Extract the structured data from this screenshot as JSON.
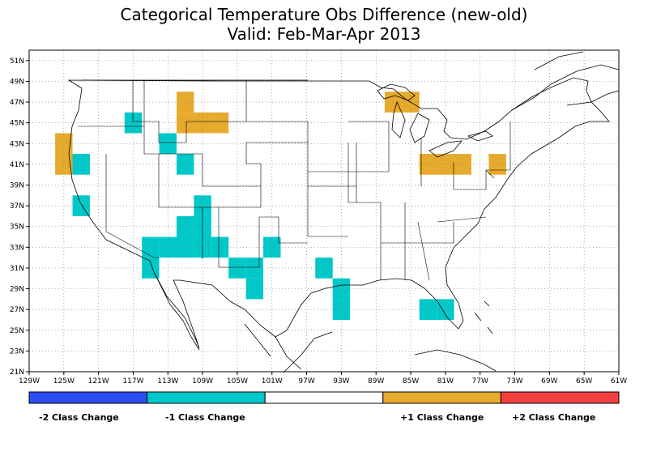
{
  "title": "Categorical Temperature Obs Difference (new-old)",
  "subtitle": "Valid: Feb-Mar-Apr 2013",
  "map": {
    "lon_range": [
      -129,
      -61
    ],
    "lat_range": [
      21,
      52
    ],
    "lon_ticks": [
      "129W",
      "125W",
      "121W",
      "117W",
      "113W",
      "109W",
      "105W",
      "101W",
      "97W",
      "93W",
      "89W",
      "85W",
      "81W",
      "77W",
      "73W",
      "69W",
      "65W",
      "61W"
    ],
    "lat_ticks": [
      "21N",
      "23N",
      "25N",
      "27N",
      "29N",
      "31N",
      "33N",
      "35N",
      "37N",
      "39N",
      "41N",
      "43N",
      "45N",
      "47N",
      "49N",
      "51N"
    ],
    "colors": {
      "minus1": "#00c8c8",
      "plus1": "#e6aa2d",
      "minus2": "#2b4ef2",
      "plus2": "#f24040"
    },
    "cells": [
      {
        "lon": -125,
        "lat": 41,
        "cls": 1
      },
      {
        "lon": -125,
        "lat": 43,
        "cls": 1
      },
      {
        "lon": -123,
        "lat": 41,
        "cls": -1
      },
      {
        "lon": -123,
        "lat": 37,
        "cls": -1
      },
      {
        "lon": -117,
        "lat": 45,
        "cls": -1
      },
      {
        "lon": -113,
        "lat": 43,
        "cls": -1
      },
      {
        "lon": -111,
        "lat": 41,
        "cls": -1
      },
      {
        "lon": -111,
        "lat": 45,
        "cls": 1
      },
      {
        "lon": -111,
        "lat": 47,
        "cls": 1
      },
      {
        "lon": -109,
        "lat": 45,
        "cls": 1
      },
      {
        "lon": -107,
        "lat": 45,
        "cls": 1
      },
      {
        "lon": -109,
        "lat": 37,
        "cls": -1
      },
      {
        "lon": -111,
        "lat": 35,
        "cls": -1
      },
      {
        "lon": -109,
        "lat": 35,
        "cls": -1
      },
      {
        "lon": -115,
        "lat": 33,
        "cls": -1
      },
      {
        "lon": -113,
        "lat": 33,
        "cls": -1
      },
      {
        "lon": -111,
        "lat": 33,
        "cls": -1
      },
      {
        "lon": -109,
        "lat": 33,
        "cls": -1
      },
      {
        "lon": -107,
        "lat": 33,
        "cls": -1
      },
      {
        "lon": -115,
        "lat": 31,
        "cls": -1
      },
      {
        "lon": -105,
        "lat": 31,
        "cls": -1
      },
      {
        "lon": -103,
        "lat": 31,
        "cls": -1
      },
      {
        "lon": -103,
        "lat": 29,
        "cls": -1
      },
      {
        "lon": -101,
        "lat": 33,
        "cls": -1
      },
      {
        "lon": -95,
        "lat": 31,
        "cls": -1
      },
      {
        "lon": -93,
        "lat": 29,
        "cls": -1
      },
      {
        "lon": -93,
        "lat": 27,
        "cls": -1
      },
      {
        "lon": -87,
        "lat": 47,
        "cls": 1
      },
      {
        "lon": -85,
        "lat": 47,
        "cls": 1
      },
      {
        "lon": -83,
        "lat": 41,
        "cls": 1
      },
      {
        "lon": -81,
        "lat": 41,
        "cls": 1
      },
      {
        "lon": -79,
        "lat": 41,
        "cls": 1
      },
      {
        "lon": -75,
        "lat": 41,
        "cls": 1
      },
      {
        "lon": -83,
        "lat": 27,
        "cls": -1
      },
      {
        "lon": -81,
        "lat": 27,
        "cls": -1
      }
    ]
  },
  "legend": {
    "items": [
      {
        "label": "-2 Class Change",
        "color": "#2b4ef2"
      },
      {
        "label": "-1 Class Change",
        "color": "#00c8c8"
      },
      {
        "label": "",
        "color": "#ffffff"
      },
      {
        "label": "+1 Class Change",
        "color": "#e6aa2d"
      },
      {
        "label": "+2 Class Change",
        "color": "#f24040"
      }
    ]
  }
}
